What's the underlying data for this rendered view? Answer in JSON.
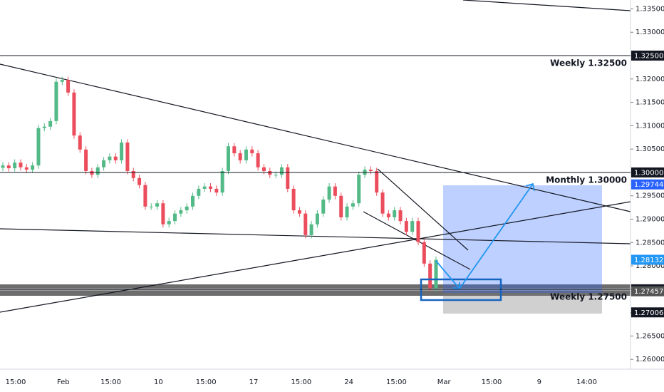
{
  "chart_data": {
    "type": "candlestick",
    "up_color": "#53b987",
    "down_color": "#eb4d5c",
    "open": [
      1.301,
      1.3015,
      1.3009,
      1.3021,
      1.3011,
      1.3006,
      1.3015,
      1.3095,
      1.3098,
      1.311,
      1.3194,
      1.3198,
      1.3171,
      1.3079,
      1.3049,
      1.3003,
      1.2995,
      1.3011,
      1.3026,
      1.3034,
      1.3026,
      1.3064,
      1.3003,
      1.2988,
      1.2973,
      1.2927,
      1.2927,
      1.2934,
      1.2889,
      1.2896,
      1.2912,
      1.2919,
      1.2927,
      1.295,
      1.2965,
      1.297,
      1.2965,
      1.2957,
      1.3003,
      1.3056,
      1.3041,
      1.3026,
      1.3049,
      1.3041,
      1.3011,
      1.3003,
      1.2995,
      1.2995,
      1.3011,
      1.2965,
      1.2919,
      1.2912,
      1.2866,
      1.2889,
      1.2912,
      1.2942,
      1.297,
      1.295,
      1.2904,
      1.2927,
      1.2934,
      1.2995,
      1.3006,
      1.3003,
      1.2957,
      1.2912,
      1.2904,
      1.2919,
      1.2896,
      1.2873,
      1.2896,
      1.2851,
      1.2805,
      1.2752
    ],
    "high": [
      1.3022,
      1.3022,
      1.3028,
      1.3028,
      1.3018,
      1.3022,
      1.3102,
      1.3105,
      1.3117,
      1.3201,
      1.3205,
      1.3205,
      1.3178,
      1.3086,
      1.3056,
      1.301,
      1.3018,
      1.3033,
      1.3041,
      1.3041,
      1.3071,
      1.3071,
      1.301,
      1.2995,
      1.298,
      1.2934,
      1.2941,
      1.2941,
      1.2903,
      1.2919,
      1.2926,
      1.2934,
      1.2957,
      1.2972,
      1.2977,
      1.2977,
      1.2972,
      1.301,
      1.3063,
      1.3063,
      1.3048,
      1.3056,
      1.3056,
      1.3048,
      1.3018,
      1.301,
      1.3002,
      1.3018,
      1.3018,
      1.2972,
      1.2926,
      1.2919,
      1.2896,
      1.2919,
      1.2949,
      1.2977,
      1.2977,
      1.2957,
      1.2934,
      1.2941,
      1.3002,
      1.3013,
      1.3013,
      1.301,
      1.2964,
      1.2919,
      1.2926,
      1.2926,
      1.2903,
      1.2903,
      1.2903,
      1.2858,
      1.2812,
      1.282
    ],
    "low": [
      1.3003,
      1.3002,
      1.3002,
      1.3004,
      1.2999,
      1.2999,
      1.3008,
      1.3088,
      1.3091,
      1.3103,
      1.3187,
      1.3164,
      1.3072,
      1.3042,
      1.2996,
      1.2988,
      1.2988,
      1.3004,
      1.3019,
      1.3019,
      1.3019,
      1.2996,
      1.2981,
      1.2966,
      1.292,
      1.292,
      1.292,
      1.2882,
      1.2882,
      1.2889,
      1.2905,
      1.2912,
      1.292,
      1.2943,
      1.2958,
      1.2958,
      1.295,
      1.295,
      1.2996,
      1.3034,
      1.3019,
      1.3019,
      1.3034,
      1.3004,
      1.2996,
      1.2988,
      1.2988,
      1.2988,
      1.2958,
      1.2912,
      1.2905,
      1.2859,
      1.2859,
      1.2882,
      1.2905,
      1.2935,
      1.2943,
      1.2897,
      1.2897,
      1.292,
      1.2927,
      1.2988,
      1.2996,
      1.295,
      1.2905,
      1.2897,
      1.2897,
      1.2889,
      1.2866,
      1.2866,
      1.2844,
      1.2798,
      1.2745,
      1.2745
    ],
    "close": [
      1.3015,
      1.3009,
      1.3021,
      1.3011,
      1.3006,
      1.3015,
      1.3095,
      1.3098,
      1.311,
      1.3194,
      1.3198,
      1.3171,
      1.3079,
      1.3049,
      1.3003,
      1.2995,
      1.3011,
      1.3026,
      1.3034,
      1.3026,
      1.3064,
      1.3003,
      1.2988,
      1.2973,
      1.2927,
      1.2927,
      1.2934,
      1.2889,
      1.2896,
      1.2912,
      1.2919,
      1.2927,
      1.295,
      1.2965,
      1.297,
      1.2965,
      1.2957,
      1.3003,
      1.3056,
      1.3041,
      1.3026,
      1.3049,
      1.3041,
      1.3011,
      1.3003,
      1.2995,
      1.2995,
      1.3011,
      1.2965,
      1.2919,
      1.2912,
      1.2866,
      1.2889,
      1.2912,
      1.2942,
      1.297,
      1.295,
      1.2904,
      1.2927,
      1.2934,
      1.2995,
      1.3006,
      1.3003,
      1.2957,
      1.2912,
      1.2904,
      1.2919,
      1.2896,
      1.2873,
      1.2896,
      1.2851,
      1.2805,
      1.2752,
      1.2813
    ],
    "ylim": [
      1.2579,
      1.3369
    ],
    "yticks": [
      {
        "value": 1.26,
        "label": "1.26000"
      },
      {
        "value": 1.265,
        "label": "1.26500"
      },
      {
        "value": 1.27,
        "label": "1.27000"
      },
      {
        "value": 1.275,
        "label": "1.27500"
      },
      {
        "value": 1.28,
        "label": "1.28000"
      },
      {
        "value": 1.285,
        "label": "1.28500"
      },
      {
        "value": 1.29,
        "label": "1.29000"
      },
      {
        "value": 1.295,
        "label": "1.29500"
      },
      {
        "value": 1.3,
        "label": "1.30000"
      },
      {
        "value": 1.305,
        "label": "1.30500"
      },
      {
        "value": 1.31,
        "label": "1.31000"
      },
      {
        "value": 1.315,
        "label": "1.31500"
      },
      {
        "value": 1.32,
        "label": "1.32000"
      },
      {
        "value": 1.325,
        "label": "1.32500"
      },
      {
        "value": 1.33,
        "label": "1.33000"
      },
      {
        "value": 1.335,
        "label": "1.33500"
      }
    ],
    "time_labels": [
      "15:00",
      "Feb",
      "15:00",
      "10",
      "15:00",
      "17",
      "15:00",
      "24",
      "15:00",
      "Mar",
      "15:00",
      "9",
      "14:00"
    ],
    "levels": [
      {
        "label": "Weekly 1.32500",
        "value": 1.325
      },
      {
        "label": "Monthly 1.30000",
        "value": 1.3
      },
      {
        "label": "Weekly 1.27500",
        "value": 1.275
      }
    ],
    "price_tags": [
      {
        "value": 1.325,
        "label": "1.32500",
        "color": "#131722"
      },
      {
        "value": 1.3,
        "label": "1.30000",
        "color": "#131722"
      },
      {
        "value": 1.29744,
        "label": "1.29744",
        "color": "#2962ff"
      },
      {
        "value": 1.28132,
        "label": "1.28132",
        "color": "#2196f3"
      },
      {
        "value": 1.275,
        "label": "1.27500",
        "color": "#131722"
      },
      {
        "value": 1.27457,
        "label": "1.27457",
        "color": "#555555"
      },
      {
        "value": 1.27006,
        "label": "1.27006",
        "color": "#131722"
      }
    ]
  }
}
